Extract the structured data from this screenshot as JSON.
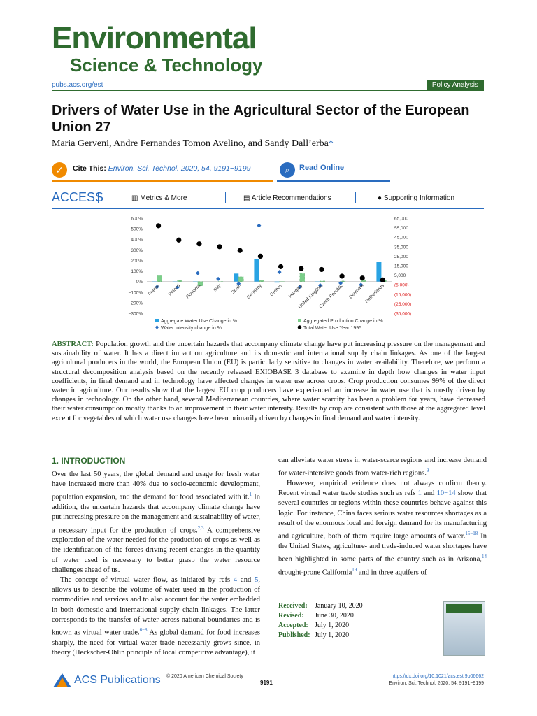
{
  "journal": {
    "logo_line1": "Environmental",
    "logo_line2": "Science & Technology",
    "url": "pubs.acs.org/est",
    "section": "Policy Analysis"
  },
  "article": {
    "title": "Drivers of Water Use in the Agricultural Sector of the European Union 27",
    "authors": "Maria Gerveni, Andre Fernandes Tomon Avelino, and Sandy Dall’erba",
    "corresponding_mark": "*"
  },
  "cite": {
    "label": "Cite This:",
    "reference": "Environ. Sci. Technol.",
    "reference_tail": "2020, 54, 9191−9199",
    "read_online": "Read Online"
  },
  "access": {
    "label": "ACCESS",
    "metrics": "Metrics & More",
    "recommendations": "Article Recommendations",
    "supporting": "Supporting Information"
  },
  "chart_data": {
    "type": "bar",
    "categories": [
      "France",
      "Poland",
      "Romania",
      "Italy",
      "Spain",
      "Germany",
      "Greece",
      "Hungary",
      "United Kingdom",
      "Czech Republic",
      "Denmark",
      "Netherlands"
    ],
    "ylim_left": [
      -300,
      600
    ],
    "left_ticks": [
      "600%",
      "500%",
      "400%",
      "300%",
      "200%",
      "100%",
      "0%",
      "−100%",
      "−200%",
      "−300%"
    ],
    "ylim_right": [
      -35000,
      65000
    ],
    "right_ticks": [
      "65,000",
      "55,000",
      "45,000",
      "35,000",
      "25,000",
      "15,000",
      "5,000",
      "(5,000)",
      "(15,000)",
      "(25,000)",
      "(35,000)"
    ],
    "series": [
      {
        "name": "Aggregate Water Use Change in  %",
        "kind": "bar",
        "color": "#29a3e3",
        "values": [
          -5,
          -5,
          -3,
          0,
          75,
          210,
          -10,
          0,
          -5,
          0,
          0,
          185
        ]
      },
      {
        "name": "Aggregated Production Change in %",
        "kind": "bar",
        "color": "#7ccf8a",
        "values": [
          55,
          10,
          -40,
          -5,
          45,
          10,
          -3,
          75,
          5,
          5,
          10,
          15
        ]
      },
      {
        "name": "Water Intensity change in %",
        "kind": "marker",
        "color": "#2a6cbf",
        "values": [
          -50,
          -55,
          80,
          25,
          -20,
          530,
          90,
          -50,
          -35,
          -15,
          -30,
          10
        ]
      },
      {
        "name": "Total Water Use Year 1995",
        "kind": "dot",
        "color": "#000000",
        "axis": "right",
        "values": [
          57000,
          42000,
          38000,
          35000,
          31000,
          25000,
          14000,
          12000,
          11000,
          4000,
          2000,
          0
        ]
      }
    ]
  },
  "abstract": {
    "label": "ABSTRACT:",
    "text": "Population growth and the uncertain hazards that accompany climate change have put increasing pressure on the management and sustainability of water. It has a direct impact on agriculture and its domestic and international supply chain linkages. As one of the largest agricultural producers in the world, the European Union (EU) is particularly sensitive to changes in water availability. Therefore, we perform a structural decomposition analysis based on the recently released EXIOBASE 3 database to examine in depth how changes in water input coefficients, in final demand and in technology have affected changes in water use across crops. Crop production consumes 99% of the direct water in agriculture. Our results show that the largest EU crop producers have experienced an increase in water use that is mostly driven by changes in technology. On the other hand, several Mediterranean countries, where water scarcity has been a problem for years, have decreased their water consumption mostly thanks to an improvement in their water intensity. Results by crop are consistent with those at the aggregated level except for vegetables of which water use changes have been primarily driven by changes in final demand and water intensity."
  },
  "intro": {
    "heading": "1. INTRODUCTION",
    "left_p1": "Over the last 50 years, the global demand and usage for fresh water have increased more than 40% due to socio-economic development, population expansion, and the demand for food associated with it.",
    "left_p1_ref": "1",
    "left_p1b": " In addition, the uncertain hazards that accompany climate change have put increasing pressure on the management and sustainability of water, a necessary input for the production of crops.",
    "left_p1b_ref": "2,3",
    "left_p1c": " A comprehensive exploration of the water needed for the production of crops as well as the identification of the forces driving recent changes in the quantity of water used is necessary to better grasp the water resource challenges ahead of us.",
    "left_p2a": "The concept of virtual water flow, as initiated by refs ",
    "left_p2_ref1": "4",
    "left_p2b": " and ",
    "left_p2_ref2": "5",
    "left_p2c": ", allows us to describe the volume of water used in the production of commodities and services and to also account for the water embedded in both domestic and international supply chain linkages. The latter corresponds to the transfer of water across national boundaries and is known as virtual water trade.",
    "left_p2_ref3": "6−8",
    "left_p2d": " As global demand for food increases sharply, the need for virtual water trade necessarily grows since, in theory (Heckscher-Ohlin principle of local competitive advantage), it",
    "right_p0": "can alleviate water stress in water-scarce regions and increase demand for water-intensive goods from water-rich regions.",
    "right_p0_ref": "9",
    "right_p1a": "However, empirical evidence does not always confirm theory. Recent virtual water trade studies such as refs ",
    "right_p1_ref1": "1",
    "right_p1b": " and ",
    "right_p1_ref2": "10−14",
    "right_p1c": " show that several countries or regions within these countries behave against this logic. For instance, China faces serious water resources shortages as a result of the enormous local and foreign demand for its manufacturing and agriculture, both of them require large amounts of water.",
    "right_p1_ref3": "15−18",
    "right_p1d": " In the United States, agriculture- and trade-induced water shortages have been highlighted in some parts of the country such as in Arizona,",
    "right_p1_ref4": "14",
    "right_p1e": " drought-prone California",
    "right_p1_ref5": "19",
    "right_p1f": " and in three aquifers of"
  },
  "dates": {
    "received_label": "Received:",
    "received": "January 10, 2020",
    "revised_label": "Revised:",
    "revised": "June 30, 2020",
    "accepted_label": "Accepted:",
    "accepted": "July 1, 2020",
    "published_label": "Published:",
    "published": "July 1, 2020"
  },
  "footer": {
    "publisher": "ACS Publications",
    "copyright": "© 2020 American Chemical Society",
    "page": "9191",
    "doi": "https://dx.doi.org/10.1021/acs.est.9b06662",
    "citation": "Environ. Sci. Technol. 2020, 54, 9191−9199"
  }
}
